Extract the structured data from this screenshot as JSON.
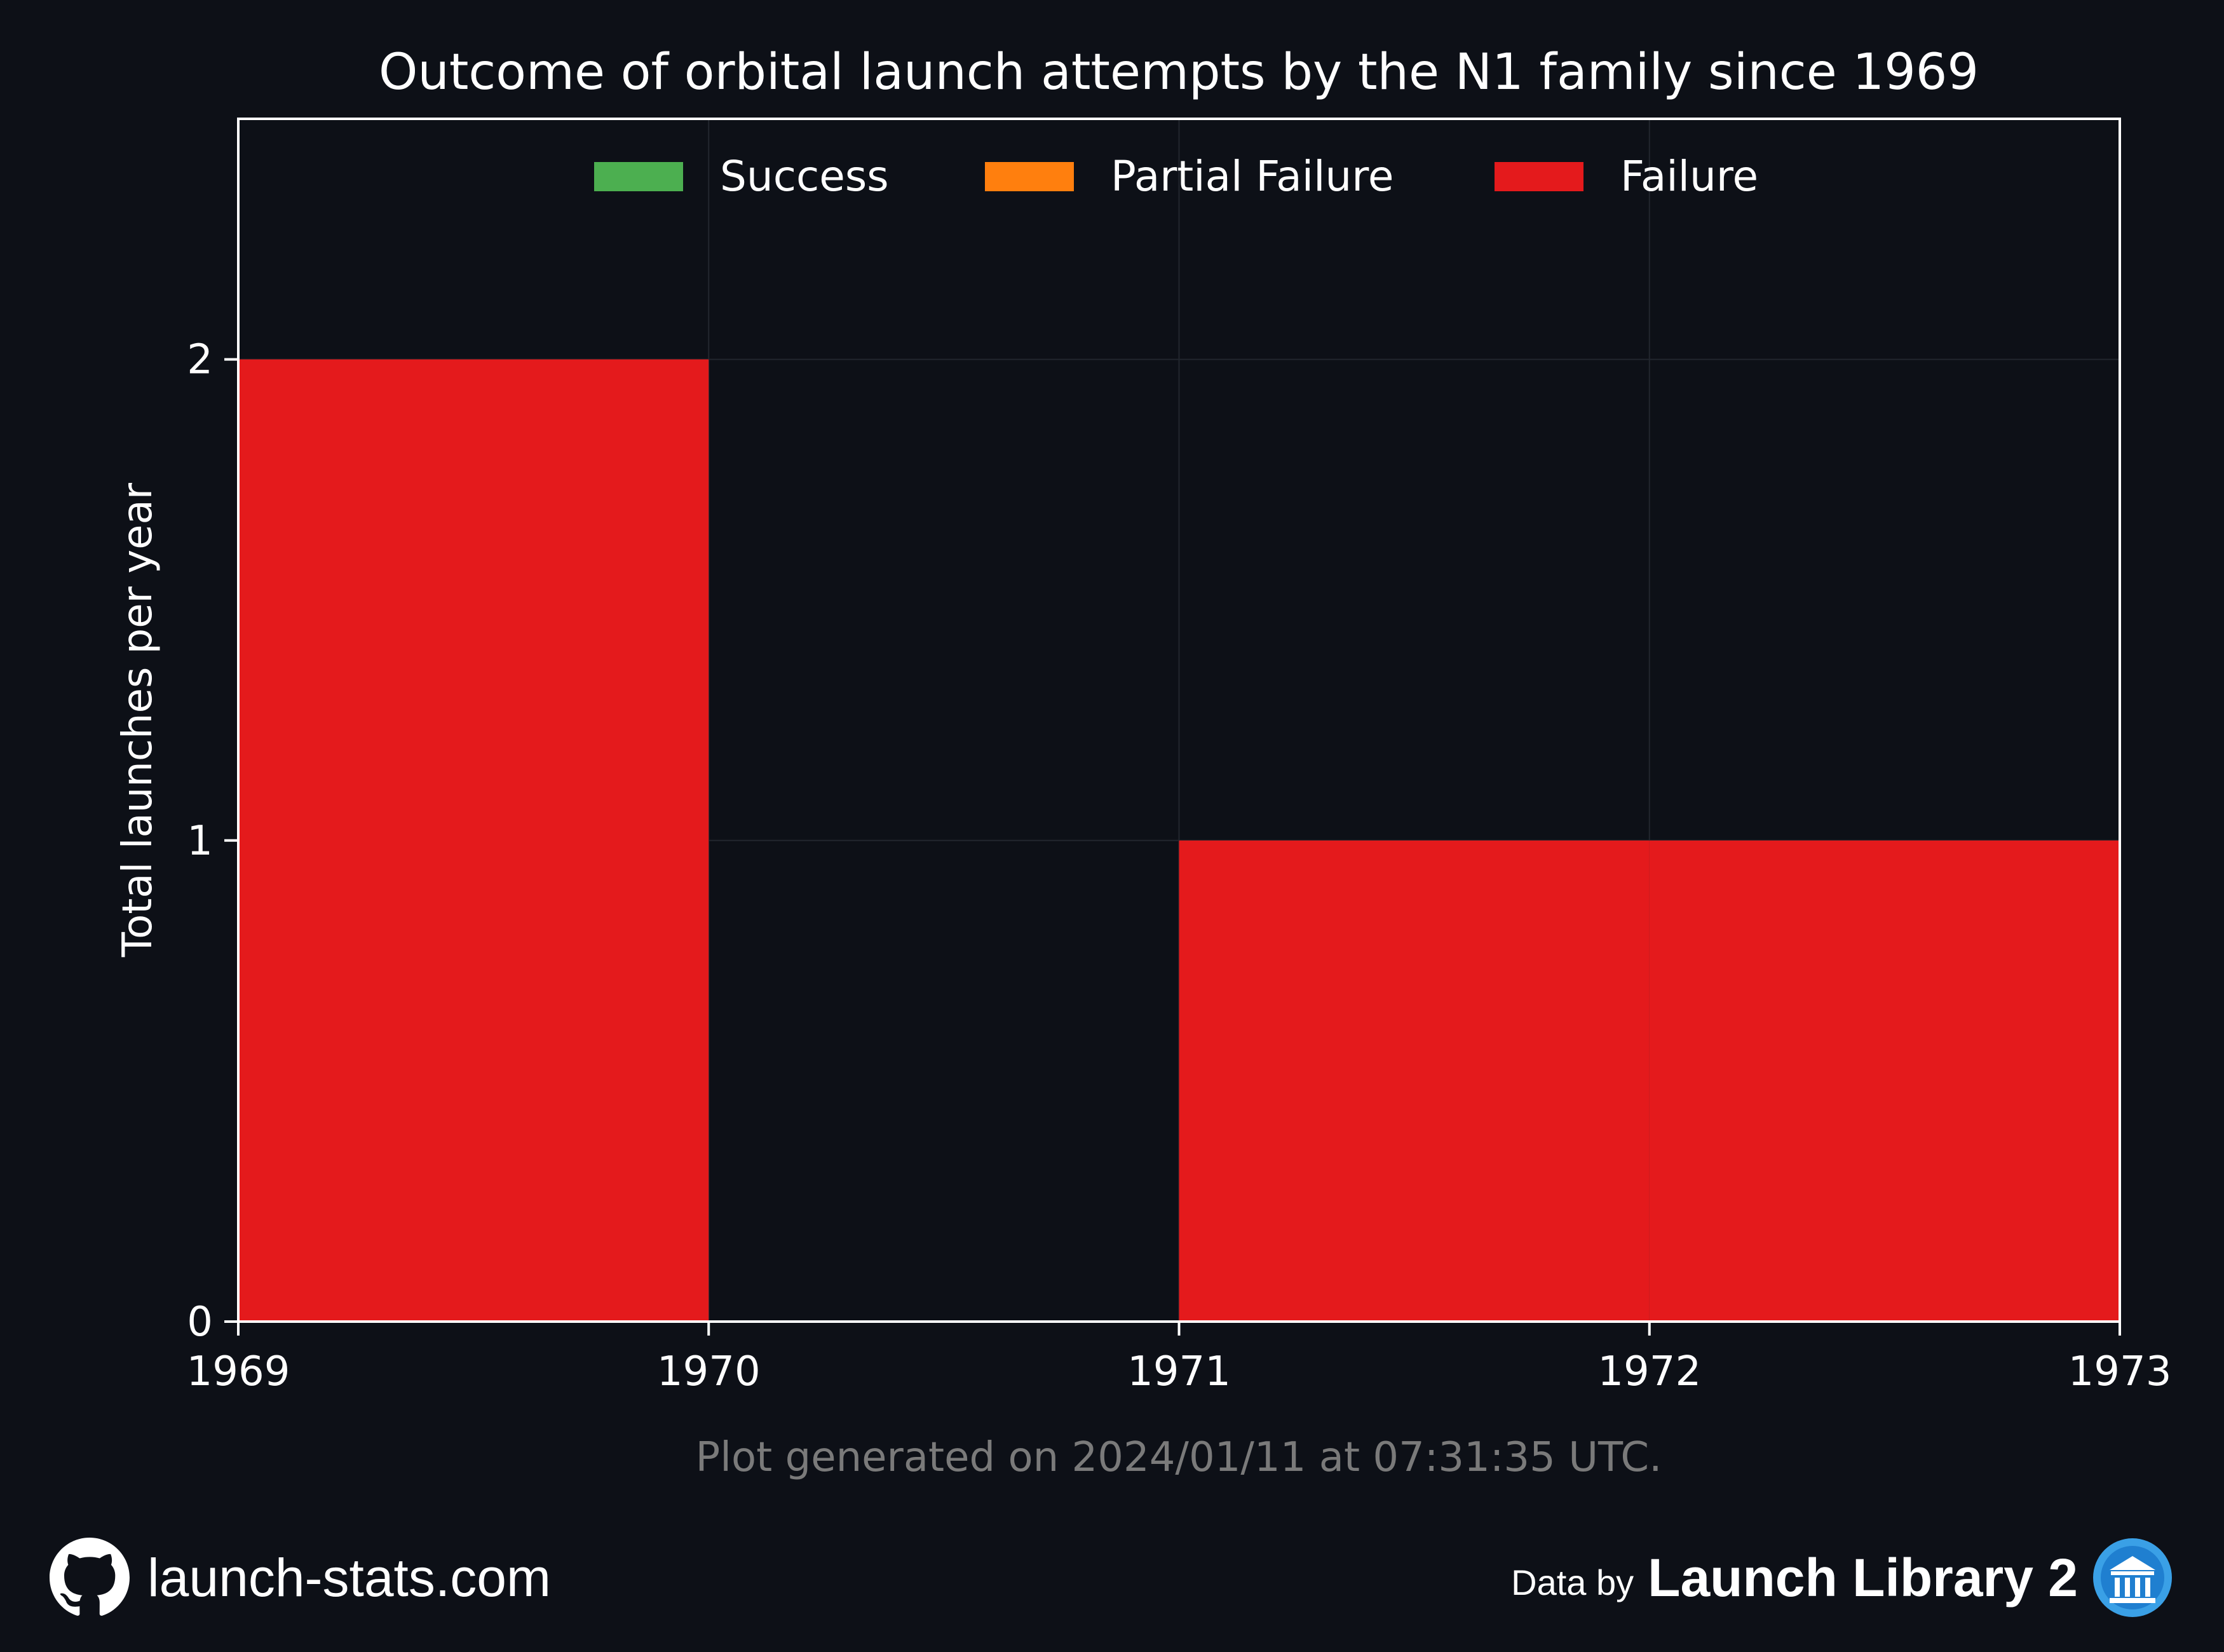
{
  "chart_data": {
    "type": "bar",
    "stacked": true,
    "title": "Outcome of orbital launch attempts by the N1 family since 1969",
    "ylabel": "Total launches per year",
    "xlabel": "",
    "x_bins": [
      1969,
      1970,
      1971,
      1972
    ],
    "bin_width": 1,
    "xlim": [
      1969,
      1973
    ],
    "ylim": [
      0,
      2.5
    ],
    "xticks": [
      "1969",
      "1970",
      "1971",
      "1972",
      "1973"
    ],
    "yticks": [
      "0",
      "1",
      "2"
    ],
    "grid": true,
    "legend_position": "top-center",
    "series": [
      {
        "name": "Success",
        "color": "#4caf50",
        "values": [
          0,
          0,
          0,
          0
        ]
      },
      {
        "name": "Partial Failure",
        "color": "#ff7f0e",
        "values": [
          0,
          0,
          0,
          0
        ]
      },
      {
        "name": "Failure",
        "color": "#e41a1c",
        "values": [
          2,
          0,
          1,
          1
        ]
      }
    ]
  },
  "footnote": "Plot generated on 2024/01/11 at 07:31:35 UTC.",
  "footer": {
    "site": "launch-stats.com",
    "site_icon": "github-icon",
    "data_by": "Data by",
    "source": "Launch Library 2",
    "source_icon": "launch-library-logo-icon"
  },
  "colors": {
    "background": "#0d1017",
    "text": "#ffffff",
    "muted": "#7a7a7a",
    "grid": "#22262e"
  }
}
